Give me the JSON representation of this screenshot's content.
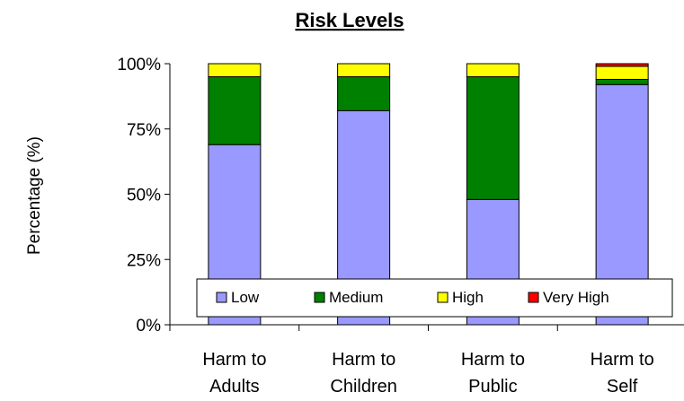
{
  "chart_data": {
    "type": "bar",
    "stacked": true,
    "title": "Risk Levels",
    "xlabel": "",
    "ylabel": "Percentage (%)",
    "ylim": [
      0,
      100
    ],
    "yticks": [
      "0%",
      "25%",
      "50%",
      "75%",
      "100%"
    ],
    "ytick_values": [
      0,
      25,
      50,
      75,
      100
    ],
    "categories": [
      [
        "Harm to",
        "Adults"
      ],
      [
        "Harm to",
        "Children"
      ],
      [
        "Harm to",
        "Public"
      ],
      [
        "Harm to",
        "Self"
      ]
    ],
    "series": [
      {
        "name": "Low",
        "color": "#9999FF",
        "values": [
          69,
          82,
          48,
          92
        ]
      },
      {
        "name": "Medium",
        "color": "#008000",
        "values": [
          26,
          13,
          47,
          2
        ]
      },
      {
        "name": "High",
        "color": "#FFFF00",
        "values": [
          5,
          5,
          5,
          5
        ]
      },
      {
        "name": "Very High",
        "color": "#FF0000",
        "values": [
          0,
          0,
          0,
          1
        ]
      }
    ],
    "grid": false,
    "legend": "bottom-inside"
  }
}
